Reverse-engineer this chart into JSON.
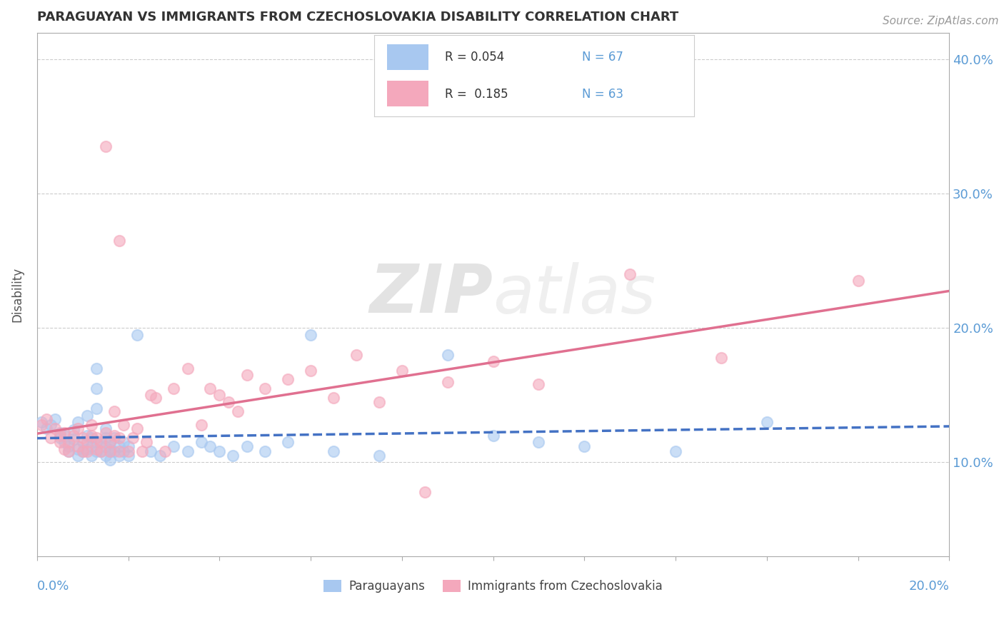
{
  "title": "PARAGUAYAN VS IMMIGRANTS FROM CZECHOSLOVAKIA DISABILITY CORRELATION CHART",
  "source": "Source: ZipAtlas.com",
  "ylabel": "Disability",
  "legend_blue_r": "R = 0.054",
  "legend_blue_n": "N = 67",
  "legend_pink_r": "R =  0.185",
  "legend_pink_n": "N = 63",
  "xlim": [
    0.0,
    0.2
  ],
  "ylim": [
    0.03,
    0.42
  ],
  "yticks": [
    0.1,
    0.2,
    0.3,
    0.4
  ],
  "ytick_labels": [
    "10.0%",
    "20.0%",
    "30.0%",
    "40.0%"
  ],
  "color_blue": "#a8c8f0",
  "color_pink": "#f4a8bc",
  "line_blue": "#4472c4",
  "line_pink": "#e07090",
  "watermark_zip": "ZIP",
  "watermark_atlas": "atlas",
  "blue_points": [
    [
      0.001,
      0.13
    ],
    [
      0.002,
      0.125
    ],
    [
      0.003,
      0.128
    ],
    [
      0.004,
      0.132
    ],
    [
      0.005,
      0.118
    ],
    [
      0.005,
      0.122
    ],
    [
      0.006,
      0.115
    ],
    [
      0.006,
      0.12
    ],
    [
      0.007,
      0.108
    ],
    [
      0.007,
      0.112
    ],
    [
      0.008,
      0.117
    ],
    [
      0.008,
      0.124
    ],
    [
      0.009,
      0.105
    ],
    [
      0.009,
      0.11
    ],
    [
      0.009,
      0.13
    ],
    [
      0.01,
      0.108
    ],
    [
      0.01,
      0.115
    ],
    [
      0.011,
      0.11
    ],
    [
      0.011,
      0.12
    ],
    [
      0.011,
      0.135
    ],
    [
      0.012,
      0.105
    ],
    [
      0.012,
      0.112
    ],
    [
      0.012,
      0.118
    ],
    [
      0.013,
      0.108
    ],
    [
      0.013,
      0.115
    ],
    [
      0.013,
      0.14
    ],
    [
      0.013,
      0.155
    ],
    [
      0.013,
      0.17
    ],
    [
      0.014,
      0.108
    ],
    [
      0.014,
      0.115
    ],
    [
      0.015,
      0.105
    ],
    [
      0.015,
      0.112
    ],
    [
      0.015,
      0.118
    ],
    [
      0.015,
      0.125
    ],
    [
      0.016,
      0.108
    ],
    [
      0.016,
      0.115
    ],
    [
      0.016,
      0.102
    ],
    [
      0.016,
      0.11
    ],
    [
      0.017,
      0.108
    ],
    [
      0.017,
      0.118
    ],
    [
      0.018,
      0.105
    ],
    [
      0.018,
      0.112
    ],
    [
      0.019,
      0.108
    ],
    [
      0.019,
      0.115
    ],
    [
      0.02,
      0.105
    ],
    [
      0.02,
      0.112
    ],
    [
      0.022,
      0.195
    ],
    [
      0.025,
      0.108
    ],
    [
      0.027,
      0.105
    ],
    [
      0.03,
      0.112
    ],
    [
      0.033,
      0.108
    ],
    [
      0.036,
      0.115
    ],
    [
      0.038,
      0.112
    ],
    [
      0.04,
      0.108
    ],
    [
      0.043,
      0.105
    ],
    [
      0.046,
      0.112
    ],
    [
      0.05,
      0.108
    ],
    [
      0.055,
      0.115
    ],
    [
      0.06,
      0.195
    ],
    [
      0.065,
      0.108
    ],
    [
      0.075,
      0.105
    ],
    [
      0.09,
      0.18
    ],
    [
      0.1,
      0.12
    ],
    [
      0.11,
      0.115
    ],
    [
      0.12,
      0.112
    ],
    [
      0.14,
      0.108
    ],
    [
      0.16,
      0.13
    ]
  ],
  "pink_points": [
    [
      0.001,
      0.128
    ],
    [
      0.002,
      0.132
    ],
    [
      0.003,
      0.118
    ],
    [
      0.004,
      0.125
    ],
    [
      0.005,
      0.12
    ],
    [
      0.005,
      0.115
    ],
    [
      0.006,
      0.11
    ],
    [
      0.006,
      0.122
    ],
    [
      0.007,
      0.108
    ],
    [
      0.007,
      0.115
    ],
    [
      0.008,
      0.12
    ],
    [
      0.009,
      0.112
    ],
    [
      0.009,
      0.125
    ],
    [
      0.01,
      0.108
    ],
    [
      0.01,
      0.118
    ],
    [
      0.011,
      0.108
    ],
    [
      0.011,
      0.115
    ],
    [
      0.012,
      0.12
    ],
    [
      0.012,
      0.128
    ],
    [
      0.013,
      0.11
    ],
    [
      0.013,
      0.118
    ],
    [
      0.014,
      0.108
    ],
    [
      0.014,
      0.115
    ],
    [
      0.015,
      0.122
    ],
    [
      0.016,
      0.108
    ],
    [
      0.016,
      0.115
    ],
    [
      0.017,
      0.12
    ],
    [
      0.017,
      0.138
    ],
    [
      0.018,
      0.108
    ],
    [
      0.018,
      0.118
    ],
    [
      0.019,
      0.128
    ],
    [
      0.015,
      0.335
    ],
    [
      0.018,
      0.265
    ],
    [
      0.02,
      0.108
    ],
    [
      0.021,
      0.118
    ],
    [
      0.022,
      0.125
    ],
    [
      0.023,
      0.108
    ],
    [
      0.024,
      0.115
    ],
    [
      0.025,
      0.15
    ],
    [
      0.026,
      0.148
    ],
    [
      0.028,
      0.108
    ],
    [
      0.03,
      0.155
    ],
    [
      0.033,
      0.17
    ],
    [
      0.036,
      0.128
    ],
    [
      0.038,
      0.155
    ],
    [
      0.04,
      0.15
    ],
    [
      0.042,
      0.145
    ],
    [
      0.044,
      0.138
    ],
    [
      0.046,
      0.165
    ],
    [
      0.05,
      0.155
    ],
    [
      0.055,
      0.162
    ],
    [
      0.06,
      0.168
    ],
    [
      0.065,
      0.148
    ],
    [
      0.07,
      0.18
    ],
    [
      0.075,
      0.145
    ],
    [
      0.08,
      0.168
    ],
    [
      0.085,
      0.078
    ],
    [
      0.09,
      0.16
    ],
    [
      0.1,
      0.175
    ],
    [
      0.11,
      0.158
    ],
    [
      0.13,
      0.24
    ],
    [
      0.15,
      0.178
    ],
    [
      0.18,
      0.235
    ]
  ]
}
